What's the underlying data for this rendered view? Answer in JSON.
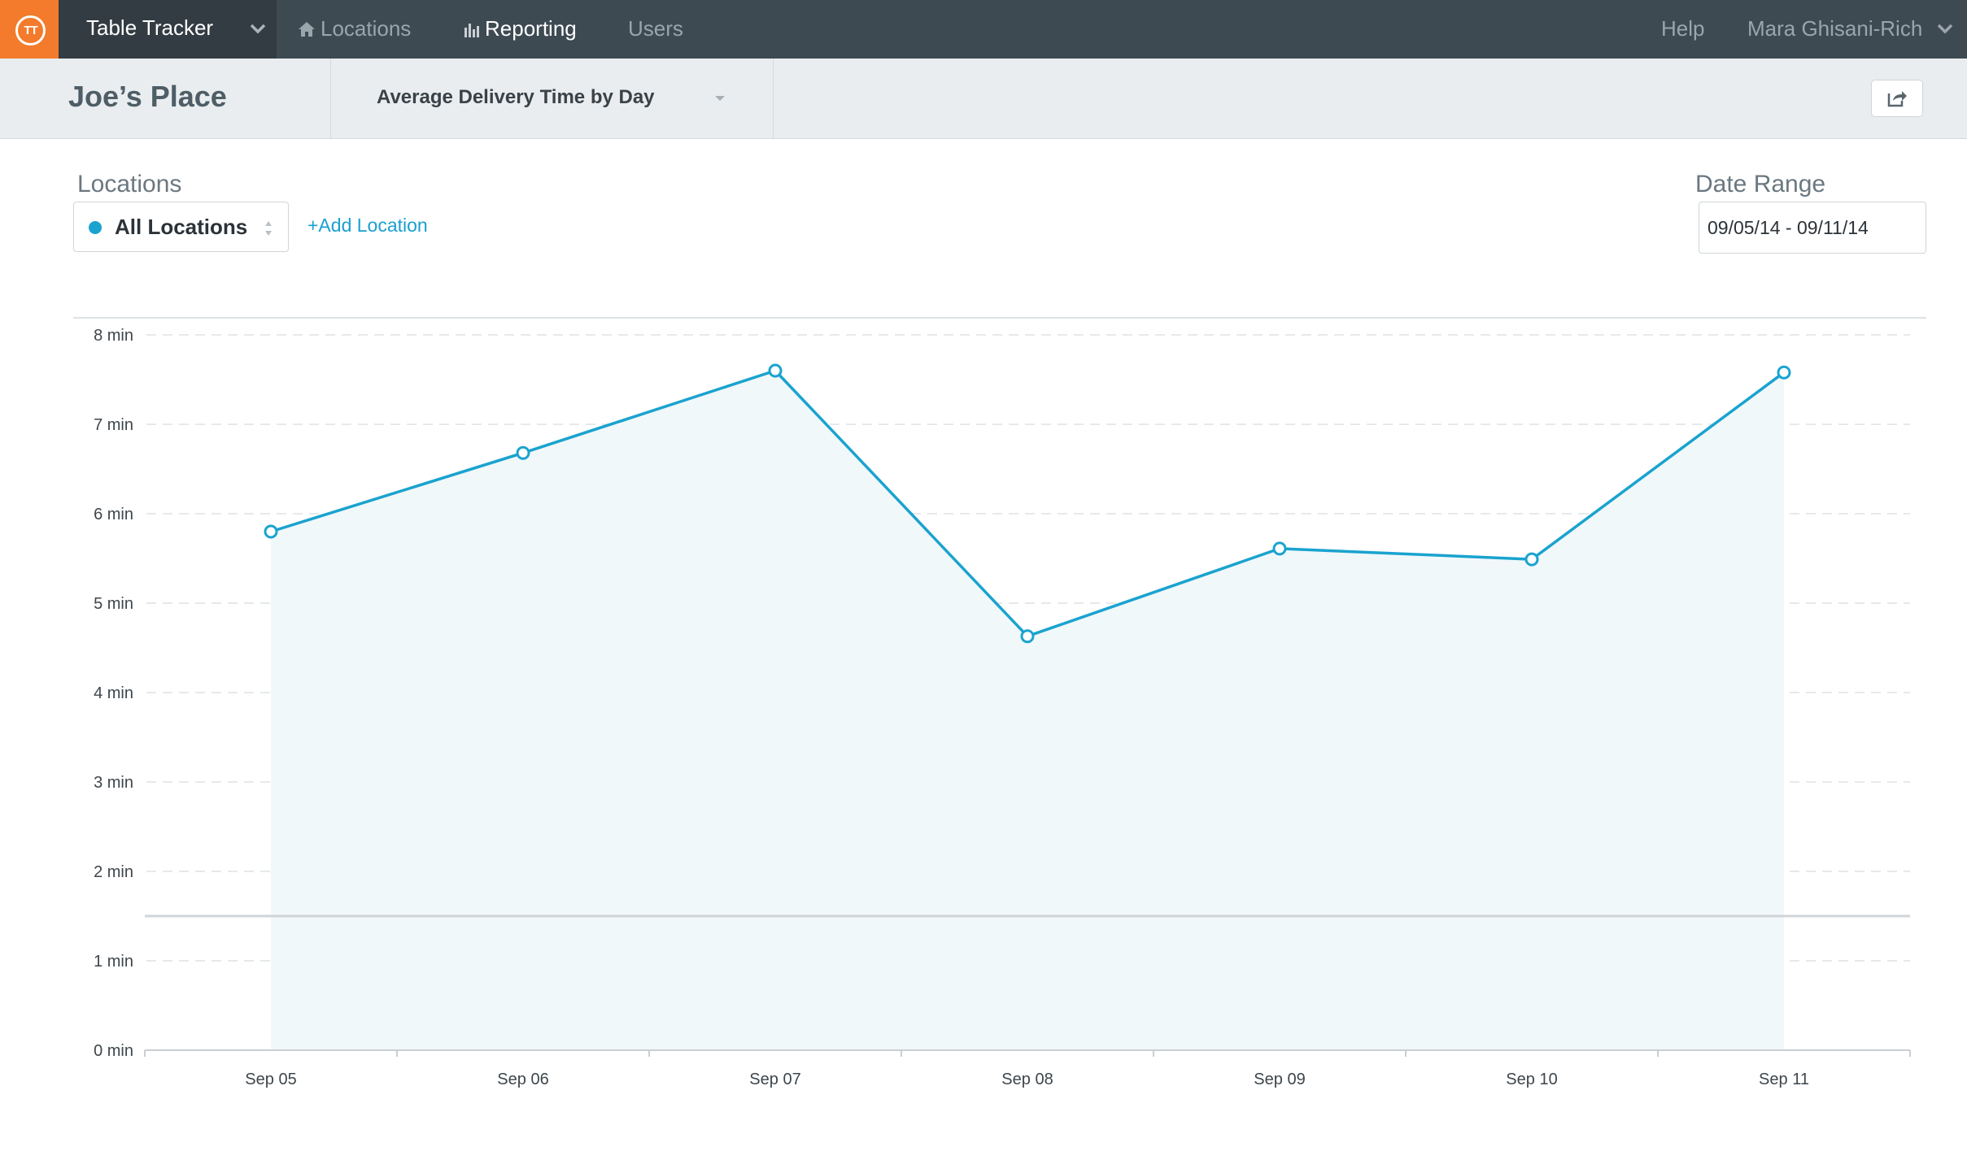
{
  "app": {
    "name": "Table Tracker",
    "logo_text": "TT",
    "brand_color": "#f37b2b",
    "nav_background": "#3e4a52"
  },
  "nav": {
    "items": [
      {
        "label": "Locations",
        "icon": "home-icon",
        "active": false
      },
      {
        "label": "Reporting",
        "icon": "bar-chart-icon",
        "active": true
      },
      {
        "label": "Users",
        "icon": "",
        "active": false
      }
    ],
    "help": "Help",
    "user": "Mara Ghisani-Rich"
  },
  "header": {
    "place": "Joe’s Place",
    "report": "Average Delivery Time by Day",
    "share_icon": "share-icon"
  },
  "filters": {
    "locations_label": "Locations",
    "location_selected": "All Locations",
    "location_dot_color": "#1aa3cf",
    "add_location": "+Add Location",
    "date_range_label": "Date Range",
    "date_range_value": "09/05/14 - 09/11/14"
  },
  "chart_data": {
    "type": "area",
    "categories": [
      "Sep 05",
      "Sep 06",
      "Sep 07",
      "Sep 08",
      "Sep 09",
      "Sep 10",
      "Sep 11"
    ],
    "series": [
      {
        "values": [
          5.8,
          6.68,
          7.6,
          4.63,
          5.61,
          5.49,
          7.58
        ],
        "color": "#1aa3cf"
      }
    ],
    "y_ticks": [
      "0 min",
      "1 min",
      "2 min",
      "3 min",
      "4 min",
      "5 min",
      "6 min",
      "7 min",
      "8 min"
    ],
    "ylim": [
      0,
      8
    ],
    "reference_line": 1.5,
    "grid": true,
    "xlabel": "",
    "ylabel": "",
    "title": ""
  }
}
